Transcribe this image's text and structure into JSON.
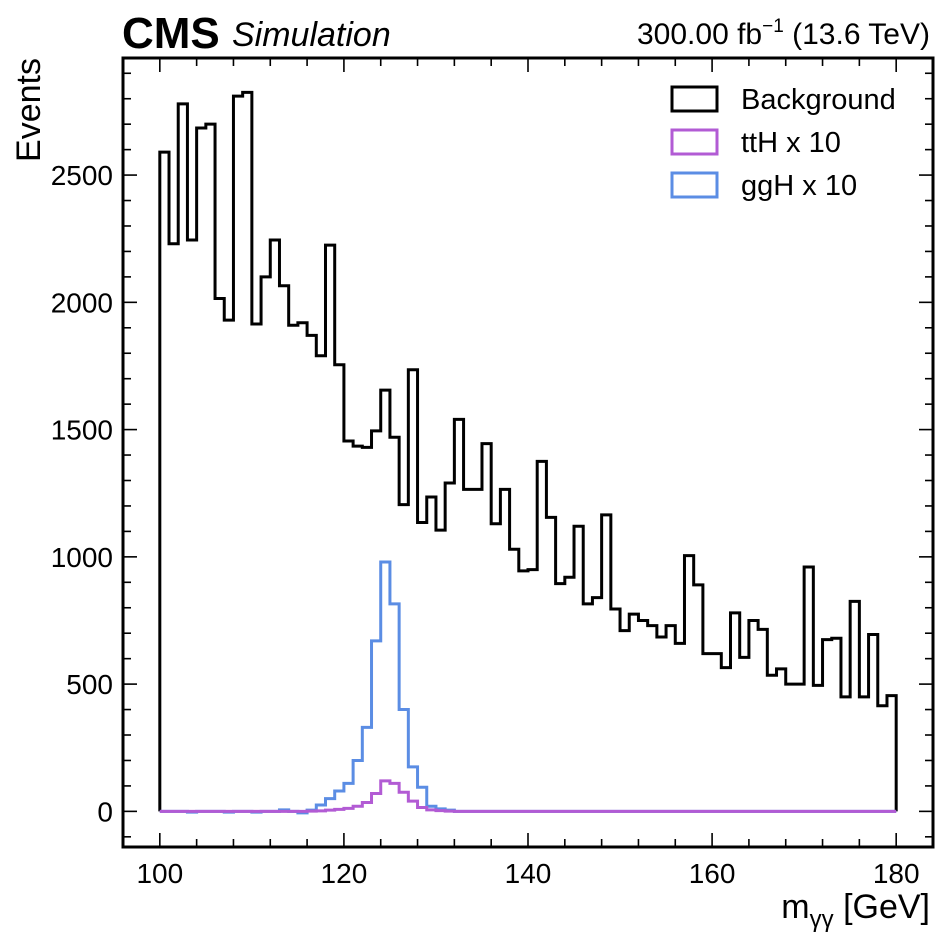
{
  "header": {
    "experiment": "CMS",
    "label": "Simulation",
    "lumi_value": "300.00 fb",
    "lumi_exponent": "−1",
    "energy": " (13.6 TeV)"
  },
  "chart_data": {
    "type": "histogram",
    "xlabel_main": "m",
    "xlabel_sub": "γγ",
    "xlabel_unit": " [GeV]",
    "ylabel": "Events",
    "xlim": [
      96,
      184
    ],
    "ylim": [
      -140,
      2960
    ],
    "xticks": [
      100,
      120,
      140,
      160,
      180
    ],
    "yticks": [
      0,
      500,
      1000,
      1500,
      2000,
      2500
    ],
    "bin_edges": [
      100,
      180
    ],
    "n_bins": 80,
    "legend_position": "top-right",
    "series": [
      {
        "name": "Background",
        "color": "#000000",
        "values": [
          2590,
          2230,
          2780,
          2245,
          2685,
          2700,
          2015,
          1930,
          2810,
          2825,
          1915,
          2100,
          2245,
          2065,
          1910,
          1920,
          1870,
          1790,
          2225,
          1755,
          1455,
          1435,
          1430,
          1495,
          1655,
          1470,
          1205,
          1735,
          1135,
          1235,
          1105,
          1290,
          1540,
          1265,
          1265,
          1445,
          1130,
          1265,
          1030,
          945,
          950,
          1375,
          1155,
          895,
          920,
          1120,
          815,
          840,
          1165,
          795,
          710,
          775,
          750,
          730,
          685,
          730,
          660,
          1005,
          890,
          620,
          620,
          565,
          780,
          605,
          750,
          715,
          535,
          560,
          500,
          500,
          960,
          495,
          675,
          680,
          450,
          825,
          450,
          695,
          415,
          455
        ]
      },
      {
        "name": "ttH x 10",
        "color": "#b25bd4",
        "values": [
          0,
          0,
          0,
          0,
          0,
          0,
          0,
          0,
          0,
          0,
          0,
          0,
          0,
          0,
          0,
          0,
          1,
          2,
          5,
          8,
          12,
          20,
          35,
          70,
          120,
          110,
          75,
          40,
          15,
          6,
          3,
          1,
          0,
          0,
          0,
          0,
          0,
          0,
          0,
          0,
          0,
          0,
          0,
          0,
          0,
          0,
          0,
          0,
          0,
          0,
          0,
          0,
          0,
          0,
          0,
          0,
          0,
          0,
          0,
          0,
          0,
          0,
          0,
          0,
          0,
          0,
          0,
          0,
          0,
          0,
          0,
          0,
          0,
          0,
          0,
          0,
          0,
          0,
          0,
          0
        ]
      },
      {
        "name": "ggH x 10",
        "color": "#5b8de4",
        "values": [
          0,
          0,
          0,
          -3,
          0,
          0,
          0,
          -3,
          0,
          0,
          -3,
          0,
          0,
          6,
          0,
          -6,
          5,
          25,
          50,
          80,
          110,
          200,
          330,
          670,
          980,
          815,
          400,
          175,
          95,
          20,
          10,
          5,
          0,
          0,
          0,
          0,
          0,
          0,
          0,
          0,
          0,
          0,
          0,
          0,
          0,
          0,
          0,
          0,
          0,
          0,
          0,
          0,
          0,
          0,
          0,
          0,
          0,
          0,
          0,
          0,
          0,
          0,
          0,
          0,
          0,
          0,
          0,
          0,
          0,
          0,
          0,
          0,
          0,
          0,
          0,
          0,
          0,
          0,
          0,
          0
        ]
      }
    ]
  }
}
